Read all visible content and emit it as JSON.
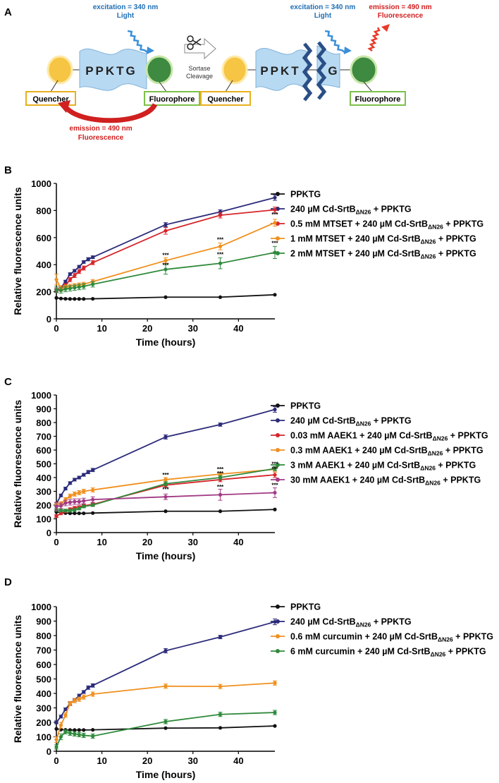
{
  "diagram": {
    "panel_label": "A",
    "left": {
      "excitation": "excitation = 340 nm",
      "light": "Light",
      "peptide": "PPKTG",
      "quencher": "Quencher",
      "fluorophore": "Fluorophore",
      "emission": "emission = 490 nm",
      "fluorescence": "Fluorescence"
    },
    "cleavage": {
      "line1": "Sortase",
      "line2": "Cleavage"
    },
    "right": {
      "excitation": "excitation = 340 nm",
      "light": "Light",
      "emission": "emission = 490 nm",
      "fluorescence": "Fluorescence",
      "peptide_left": "PPKT",
      "peptide_right": "G",
      "quencher": "Quencher",
      "fluorophore": "Fluorophore"
    },
    "colors": {
      "blue_text": "#1f6fb5",
      "red_text": "#d02020",
      "quencher_fill": "#f5c543",
      "fluor_fill": "#3d8a40",
      "peptide_fill": "#b8d9f2",
      "quencher_border": "#e8b020",
      "fluor_border": "#7cc04a"
    }
  },
  "chart_data": [
    {
      "panel": "B",
      "type": "line",
      "ylabel": "Relative fluorescence units",
      "xlabel": "Time (hours)",
      "xlim": [
        0,
        48
      ],
      "xticks": [
        0,
        10,
        20,
        30,
        40
      ],
      "ylim": [
        0,
        1000
      ],
      "yticks": [
        0,
        200,
        400,
        600,
        800,
        1000
      ],
      "series": [
        {
          "name": "PPKTG",
          "color": "#111111",
          "x": [
            0,
            1,
            2,
            3,
            4,
            5,
            6,
            8,
            24,
            36,
            48
          ],
          "y": [
            155,
            150,
            148,
            147,
            147,
            147,
            147,
            148,
            160,
            160,
            178
          ],
          "err": []
        },
        {
          "name": "240 µM Cd-SrtB",
          "sub": "ΔN26",
          "suffix": " + PPKTG",
          "color": "#2b2a7a",
          "x": [
            0,
            1,
            2,
            3,
            4,
            5,
            6,
            7,
            8,
            24,
            36,
            48
          ],
          "y": [
            205,
            230,
            275,
            330,
            355,
            385,
            420,
            440,
            455,
            695,
            790,
            895
          ],
          "err": [
            10,
            10,
            10,
            10,
            10,
            10,
            10,
            12,
            10,
            15,
            15,
            20
          ]
        },
        {
          "name": "0.5 mM MTSET + 240 µM Cd-SrtB",
          "sub": "ΔN26",
          "suffix": " + PPKTG",
          "color": "#d6252a",
          "x": [
            0,
            1,
            2,
            3,
            4,
            5,
            6,
            8,
            24,
            36,
            48
          ],
          "y": [
            210,
            220,
            245,
            290,
            320,
            350,
            375,
            415,
            650,
            765,
            805
          ],
          "err": [
            15,
            15,
            15,
            15,
            15,
            15,
            15,
            15,
            25,
            20,
            20
          ]
        },
        {
          "name": "1 mM MTSET + 240 µM Cd-SrtB",
          "sub": "ΔN26",
          "suffix": " + PPKTG",
          "color": "#f0901e",
          "x": [
            0,
            1,
            2,
            3,
            4,
            5,
            6,
            8,
            24,
            36,
            48
          ],
          "y": [
            290,
            225,
            235,
            240,
            245,
            250,
            255,
            275,
            430,
            535,
            710
          ],
          "err": [
            40,
            20,
            15,
            15,
            15,
            15,
            15,
            15,
            20,
            25,
            25
          ]
        },
        {
          "name": "2 mM MTSET + 240 µM Cd-SrtB",
          "sub": "ΔN26",
          "suffix": " + PPKTG",
          "color": "#2f8a3c",
          "x": [
            0,
            1,
            2,
            3,
            4,
            5,
            6,
            8,
            24,
            36,
            48
          ],
          "y": [
            215,
            210,
            220,
            225,
            230,
            235,
            240,
            255,
            365,
            410,
            490
          ],
          "err": [
            20,
            20,
            20,
            20,
            20,
            20,
            20,
            20,
            35,
            40,
            45
          ]
        }
      ],
      "annotations": [
        {
          "x": 24,
          "y": 455,
          "text": "***"
        },
        {
          "x": 24,
          "y": 382,
          "text": "***"
        },
        {
          "x": 36,
          "y": 570,
          "text": "***"
        },
        {
          "x": 36,
          "y": 460,
          "text": "***"
        },
        {
          "x": 48,
          "y": 755,
          "text": "***"
        },
        {
          "x": 48,
          "y": 545,
          "text": "***"
        }
      ]
    },
    {
      "panel": "C",
      "type": "line",
      "ylabel": "Relative fluorescence units",
      "xlabel": "Time (hours)",
      "xlim": [
        0,
        48
      ],
      "xticks": [
        0,
        10,
        20,
        30,
        40
      ],
      "ylim": [
        0,
        1000
      ],
      "yticks": [
        0,
        100,
        200,
        300,
        400,
        500,
        600,
        700,
        800,
        900,
        1000
      ],
      "series": [
        {
          "name": "PPKTG",
          "color": "#111111",
          "x": [
            0,
            1,
            2,
            3,
            4,
            5,
            6,
            8,
            24,
            36,
            48
          ],
          "y": [
            150,
            145,
            142,
            140,
            140,
            140,
            140,
            142,
            155,
            155,
            168
          ],
          "err": []
        },
        {
          "name": "240 µM Cd-SrtB",
          "sub": "ΔN26",
          "suffix": " + PPKTG",
          "color": "#2b2a7a",
          "x": [
            0,
            1,
            2,
            3,
            4,
            5,
            6,
            7,
            8,
            24,
            36,
            48
          ],
          "y": [
            210,
            270,
            320,
            360,
            385,
            400,
            420,
            440,
            455,
            695,
            785,
            895
          ],
          "err": [
            10,
            10,
            10,
            10,
            10,
            10,
            10,
            12,
            12,
            15,
            12,
            20
          ]
        },
        {
          "name": "0.03 mM AAEK1 + 240 µM Cd-SrtB",
          "sub": "ΔN26",
          "suffix": " + PPKTG",
          "color": "#d6252a",
          "x": [
            0,
            1,
            2,
            3,
            4,
            5,
            6,
            8,
            24,
            36,
            48
          ],
          "y": [
            120,
            140,
            155,
            170,
            180,
            185,
            195,
            205,
            345,
            385,
            420
          ],
          "err": [
            10,
            10,
            10,
            10,
            10,
            10,
            10,
            10,
            15,
            15,
            20
          ]
        },
        {
          "name": "0.3 mM AAEK1 + 240 µM Cd-SrtB",
          "sub": "ΔN26",
          "suffix": " + PPKTG",
          "color": "#f0901e",
          "x": [
            0,
            1,
            2,
            3,
            4,
            5,
            6,
            8,
            24,
            36,
            48
          ],
          "y": [
            205,
            210,
            240,
            265,
            280,
            290,
            300,
            310,
            385,
            425,
            460
          ],
          "err": [
            15,
            15,
            15,
            15,
            15,
            15,
            15,
            15,
            15,
            15,
            20
          ]
        },
        {
          "name": "3 mM AAEK1 + 240 µM Cd-SrtB",
          "sub": "ΔN26",
          "suffix": " + PPKTG",
          "color": "#2f8a3c",
          "x": [
            0,
            1,
            2,
            3,
            4,
            5,
            6,
            8,
            24,
            36,
            48
          ],
          "y": [
            165,
            160,
            160,
            160,
            165,
            175,
            190,
            200,
            355,
            400,
            465
          ],
          "err": [
            10,
            10,
            10,
            10,
            10,
            10,
            10,
            10,
            15,
            15,
            15
          ]
        },
        {
          "name": "30 mM AAEK1 + 240 µM Cd-SrtB",
          "sub": "ΔN26",
          "suffix": " + PPKTG",
          "color": "#a23a84",
          "x": [
            0,
            1,
            2,
            3,
            4,
            5,
            6,
            8,
            24,
            36,
            48
          ],
          "y": [
            190,
            195,
            215,
            220,
            225,
            225,
            230,
            240,
            260,
            275,
            290
          ],
          "err": [
            30,
            20,
            20,
            20,
            20,
            20,
            20,
            20,
            20,
            40,
            35
          ]
        }
      ],
      "annotations": [
        {
          "x": 24,
          "y": 405,
          "text": "***"
        },
        {
          "x": 24,
          "y": 300,
          "text": "***"
        },
        {
          "x": 36,
          "y": 445,
          "text": "***"
        },
        {
          "x": 36,
          "y": 415,
          "text": "***"
        },
        {
          "x": 36,
          "y": 318,
          "text": "***"
        },
        {
          "x": 48,
          "y": 485,
          "text": "***"
        },
        {
          "x": 48,
          "y": 450,
          "text": "***"
        },
        {
          "x": 48,
          "y": 330,
          "text": "***"
        }
      ]
    },
    {
      "panel": "D",
      "type": "line",
      "ylabel": "Relative fluorescence units",
      "xlabel": "Time (hours)",
      "xlim": [
        0,
        48
      ],
      "xticks": [
        0,
        10,
        20,
        30,
        40
      ],
      "ylim": [
        0,
        1000
      ],
      "yticks": [
        0,
        100,
        200,
        300,
        400,
        500,
        600,
        700,
        800,
        900,
        1000
      ],
      "series": [
        {
          "name": "PPKTG",
          "color": "#111111",
          "x": [
            0,
            1,
            2,
            3,
            4,
            5,
            6,
            8,
            24,
            36,
            48
          ],
          "y": [
            155,
            150,
            148,
            147,
            147,
            147,
            147,
            148,
            160,
            162,
            175
          ],
          "err": []
        },
        {
          "name": "240 µM Cd-SrtB",
          "sub": "ΔN26",
          "suffix": " + PPKTG",
          "color": "#2b2a7a",
          "x": [
            0,
            1,
            2,
            3,
            4,
            5,
            6,
            7,
            8,
            24,
            36,
            48
          ],
          "y": [
            200,
            240,
            290,
            330,
            355,
            385,
            410,
            440,
            455,
            695,
            790,
            895
          ],
          "err": [
            10,
            10,
            10,
            10,
            10,
            10,
            10,
            12,
            12,
            15,
            12,
            20
          ]
        },
        {
          "name": "0.6 mM curcumin + 240 µM Cd-SrtB",
          "sub": "ΔN26",
          "suffix": " + PPKTG",
          "color": "#f0901e",
          "x": [
            0,
            1,
            2,
            3,
            4,
            5,
            6,
            8,
            24,
            36,
            48
          ],
          "y": [
            80,
            180,
            250,
            330,
            350,
            360,
            375,
            395,
            450,
            448,
            472
          ],
          "err": [
            20,
            20,
            15,
            15,
            15,
            15,
            15,
            15,
            15,
            15,
            15
          ]
        },
        {
          "name": "6 mM curcumin + 240 µM Cd-SrtB",
          "sub": "ΔN26",
          "suffix": " + PPKTG",
          "color": "#2f8a3c",
          "x": [
            0,
            1,
            2,
            3,
            4,
            5,
            6,
            8,
            24,
            36,
            48
          ],
          "y": [
            30,
            100,
            135,
            125,
            120,
            115,
            110,
            105,
            205,
            255,
            268
          ],
          "err": [
            15,
            20,
            15,
            15,
            15,
            15,
            15,
            15,
            15,
            15,
            15
          ]
        }
      ],
      "annotations": []
    }
  ]
}
